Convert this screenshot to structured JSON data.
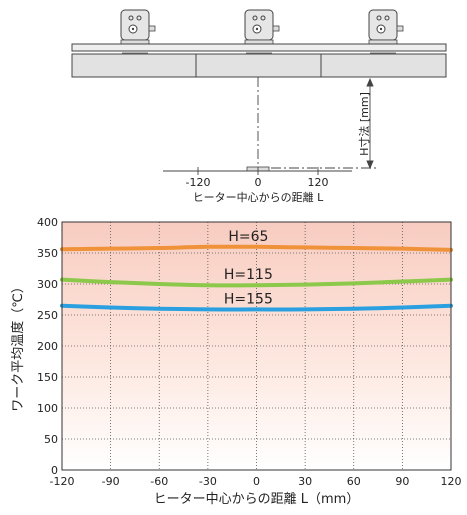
{
  "diagram": {
    "dim_label": "H寸法 [mm]",
    "x_ticks": [
      "-120",
      "0",
      "120"
    ],
    "x_label": "ヒーター中心からの距離 L"
  },
  "chart_data": {
    "type": "line",
    "xlabel": "ヒーター中心からの距離 L（mm）",
    "ylabel": "ワーク平均温度（℃）",
    "xlim": [
      -120,
      120
    ],
    "ylim": [
      0,
      400
    ],
    "x_ticks": [
      -120,
      -90,
      -60,
      -30,
      0,
      30,
      60,
      90,
      120
    ],
    "y_ticks": [
      0,
      50,
      100,
      150,
      200,
      250,
      300,
      350,
      400
    ],
    "grid": true,
    "x": [
      -120,
      -90,
      -60,
      -30,
      0,
      30,
      60,
      90,
      120
    ],
    "series": [
      {
        "name": "H=65",
        "color": "#f0923a",
        "values": [
          356,
          357,
          358,
          360,
          360,
          359,
          358,
          357,
          355
        ]
      },
      {
        "name": "H=115",
        "color": "#8cc84a",
        "values": [
          307,
          303,
          300,
          298,
          298,
          299,
          301,
          304,
          307
        ]
      },
      {
        "name": "H=155",
        "color": "#2aa0e0",
        "values": [
          265,
          262,
          260,
          259,
          259,
          259,
          260,
          262,
          265
        ]
      }
    ],
    "label_at_x": -5
  }
}
